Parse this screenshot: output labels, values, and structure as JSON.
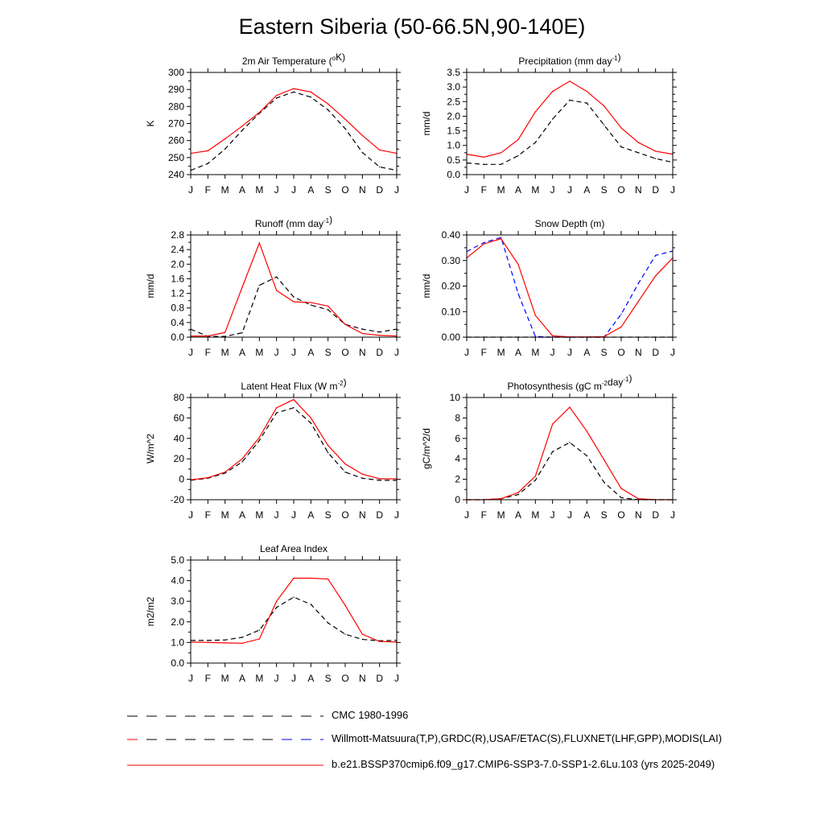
{
  "title": "Eastern Siberia (50-66.5N,90-140E)",
  "colors": {
    "model": "#ff0000",
    "obs": "#000000",
    "obs_secondary": "#0000ff"
  },
  "months": [
    "J",
    "F",
    "M",
    "A",
    "M",
    "J",
    "J",
    "A",
    "S",
    "O",
    "N",
    "D",
    "J"
  ],
  "legend": [
    {
      "label": "CMC 1980-1996",
      "style": "dash",
      "colors": [
        "#000000"
      ]
    },
    {
      "label": "Willmott-Matsuura(T,P),GRDC(R),USAF/ETAC(S),FLUXNET(LHF,GPP),MODIS(LAI)",
      "style": "dash",
      "colors": [
        "#000000",
        "#ff0000",
        "#0000ff"
      ]
    },
    {
      "label": "b.e21.BSSP370cmip6.f09_g17.CMIP6-SSP3-7.0-SSP1-2.6Lu.103 (yrs 2025-2049)",
      "style": "solid",
      "colors": [
        "#ff0000"
      ]
    }
  ],
  "chart_data": [
    {
      "type": "line",
      "title": "2m Air Temperature (°K)",
      "ylabel": "K",
      "ylim": [
        240,
        300
      ],
      "yticks": [
        "240",
        "250",
        "260",
        "270",
        "280",
        "290",
        "300"
      ],
      "categories": [
        "J",
        "F",
        "M",
        "A",
        "M",
        "J",
        "J",
        "A",
        "S",
        "O",
        "N",
        "D",
        "J"
      ],
      "series": [
        {
          "style": "dash",
          "color": "#000000",
          "values": [
            242.5,
            246.5,
            255,
            266,
            276,
            285,
            288.5,
            285.5,
            278,
            267,
            253,
            244.5,
            242.5
          ]
        },
        {
          "style": "solid",
          "color": "#ff0000",
          "values": [
            252.5,
            254,
            261,
            268.5,
            276.5,
            286.5,
            290.5,
            288.5,
            281.5,
            272.5,
            263,
            254.5,
            252.5
          ]
        }
      ]
    },
    {
      "type": "line",
      "title": "Precipitation (mm day-1)",
      "ylabel": "mm/d",
      "ylim": [
        0,
        3.5
      ],
      "yticks": [
        "0.0",
        "0.5",
        "1.0",
        "1.5",
        "2.0",
        "2.5",
        "3.0",
        "3.5"
      ],
      "categories": [
        "J",
        "F",
        "M",
        "A",
        "M",
        "J",
        "J",
        "A",
        "S",
        "O",
        "N",
        "D",
        "J"
      ],
      "series": [
        {
          "style": "dash",
          "color": "#000000",
          "values": [
            0.4,
            0.35,
            0.35,
            0.65,
            1.1,
            1.9,
            2.55,
            2.45,
            1.7,
            0.95,
            0.75,
            0.55,
            0.42
          ]
        },
        {
          "style": "solid",
          "color": "#ff0000",
          "values": [
            0.7,
            0.6,
            0.75,
            1.2,
            2.15,
            2.85,
            3.2,
            2.85,
            2.35,
            1.6,
            1.1,
            0.8,
            0.7
          ]
        }
      ]
    },
    {
      "type": "line",
      "title": "Runoff (mm day-1)",
      "ylabel": "mm/d",
      "ylim": [
        0,
        2.8
      ],
      "yticks": [
        "0.0",
        "0.4",
        "0.8",
        "1.2",
        "1.6",
        "2.0",
        "2.4",
        "2.8"
      ],
      "categories": [
        "J",
        "F",
        "M",
        "A",
        "M",
        "J",
        "J",
        "A",
        "S",
        "O",
        "N",
        "D",
        "J"
      ],
      "series": [
        {
          "style": "dash",
          "color": "#000000",
          "values": [
            0.22,
            0.02,
            0.02,
            0.12,
            1.42,
            1.65,
            1.1,
            0.88,
            0.75,
            0.35,
            0.22,
            0.14,
            0.22
          ]
        },
        {
          "style": "solid",
          "color": "#ff0000",
          "values": [
            0.03,
            0.03,
            0.13,
            1.37,
            2.58,
            1.28,
            0.97,
            0.95,
            0.85,
            0.35,
            0.1,
            0.05,
            0.03
          ]
        }
      ]
    },
    {
      "type": "line",
      "title": "Snow Depth (m)",
      "ylabel": "mm/d",
      "ylim": [
        0,
        0.4
      ],
      "yticks": [
        "0.00",
        "0.10",
        "0.20",
        "0.30",
        "0.40"
      ],
      "categories": [
        "J",
        "F",
        "M",
        "A",
        "M",
        "J",
        "J",
        "A",
        "S",
        "O",
        "N",
        "D",
        "J"
      ],
      "series": [
        {
          "style": "dash",
          "color": "#000000",
          "values": [
            0,
            0,
            0,
            0,
            0,
            0,
            0,
            0,
            0,
            0,
            0,
            0,
            0
          ]
        },
        {
          "style": "dash",
          "color": "#0000ff",
          "values": [
            0.335,
            0.37,
            0.39,
            0.17,
            0.003,
            0,
            0,
            0,
            0,
            0.09,
            0.21,
            0.32,
            0.337
          ]
        },
        {
          "style": "solid",
          "color": "#ff0000",
          "values": [
            0.31,
            0.365,
            0.385,
            0.285,
            0.085,
            0.005,
            0.001,
            0.001,
            0.002,
            0.04,
            0.14,
            0.24,
            0.31
          ]
        }
      ]
    },
    {
      "type": "line",
      "title": "Latent Heat Flux (W m-2)",
      "ylabel": "W/m^2",
      "ylim": [
        -20,
        80
      ],
      "yticks": [
        "-20",
        "0",
        "20",
        "40",
        "60",
        "80"
      ],
      "categories": [
        "J",
        "F",
        "M",
        "A",
        "M",
        "J",
        "J",
        "A",
        "S",
        "O",
        "N",
        "D",
        "J"
      ],
      "series": [
        {
          "style": "dash",
          "color": "#000000",
          "values": [
            -1,
            1,
            6,
            17,
            38,
            65,
            70,
            55,
            26,
            7,
            1,
            -1,
            -1
          ]
        },
        {
          "style": "solid",
          "color": "#ff0000",
          "values": [
            -0.5,
            1.5,
            7,
            20,
            41,
            70,
            78,
            60,
            33,
            15,
            5,
            0.5,
            0.5
          ]
        }
      ]
    },
    {
      "type": "line",
      "title": "Photosynthesis (gC m-2day-1)",
      "ylabel": "gC/m^2/d",
      "ylim": [
        0,
        10
      ],
      "yticks": [
        "0",
        "2",
        "4",
        "6",
        "8",
        "10"
      ],
      "categories": [
        "J",
        "F",
        "M",
        "A",
        "M",
        "J",
        "J",
        "A",
        "S",
        "O",
        "N",
        "D",
        "J"
      ],
      "series": [
        {
          "style": "dash",
          "color": "#000000",
          "values": [
            0,
            0,
            0.1,
            0.5,
            1.9,
            4.7,
            5.6,
            4.3,
            1.7,
            0.2,
            0,
            0,
            0
          ]
        },
        {
          "style": "solid",
          "color": "#ff0000",
          "values": [
            0,
            0,
            0.1,
            0.7,
            2.3,
            7.4,
            9.05,
            6.7,
            3.9,
            1.1,
            0.1,
            0,
            0
          ]
        }
      ]
    },
    {
      "type": "line",
      "title": "Leaf Area Index",
      "ylabel": "m2/m2",
      "ylim": [
        0,
        5
      ],
      "yticks": [
        "0.0",
        "1.0",
        "2.0",
        "3.0",
        "4.0",
        "5.0"
      ],
      "categories": [
        "J",
        "F",
        "M",
        "A",
        "M",
        "J",
        "J",
        "A",
        "S",
        "O",
        "N",
        "D",
        "J"
      ],
      "series": [
        {
          "style": "dash",
          "color": "#000000",
          "values": [
            1.1,
            1.1,
            1.12,
            1.25,
            1.6,
            2.7,
            3.2,
            2.85,
            1.95,
            1.4,
            1.15,
            1.08,
            1.1
          ]
        },
        {
          "style": "solid",
          "color": "#ff0000",
          "values": [
            1.02,
            1.0,
            0.98,
            0.96,
            1.17,
            3.0,
            4.12,
            4.12,
            4.08,
            2.8,
            1.4,
            1.05,
            1.02
          ]
        }
      ]
    }
  ]
}
